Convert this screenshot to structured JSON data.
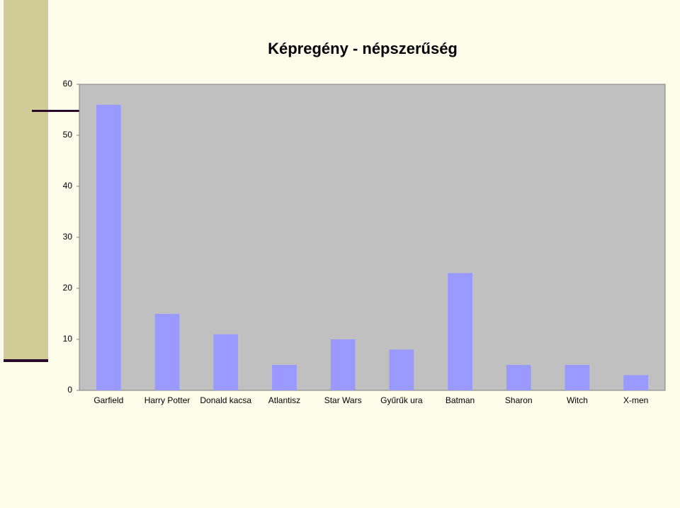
{
  "chart_data": {
    "type": "bar",
    "title": "Képregény - népszerűség",
    "categories": [
      "Garfield",
      "Harry Potter",
      "Donald kacsa",
      "Atlantisz",
      "Star Wars",
      "Gyűrűk ura",
      "Batman",
      "Sharon",
      "Witch",
      "X-men"
    ],
    "values": [
      56,
      15,
      11,
      5,
      10,
      8,
      23,
      5,
      5,
      3
    ],
    "color": "#9999ff",
    "ylim": [
      0,
      60
    ],
    "yticks": [
      0,
      10,
      20,
      30,
      40,
      50,
      60
    ],
    "grid": false
  }
}
